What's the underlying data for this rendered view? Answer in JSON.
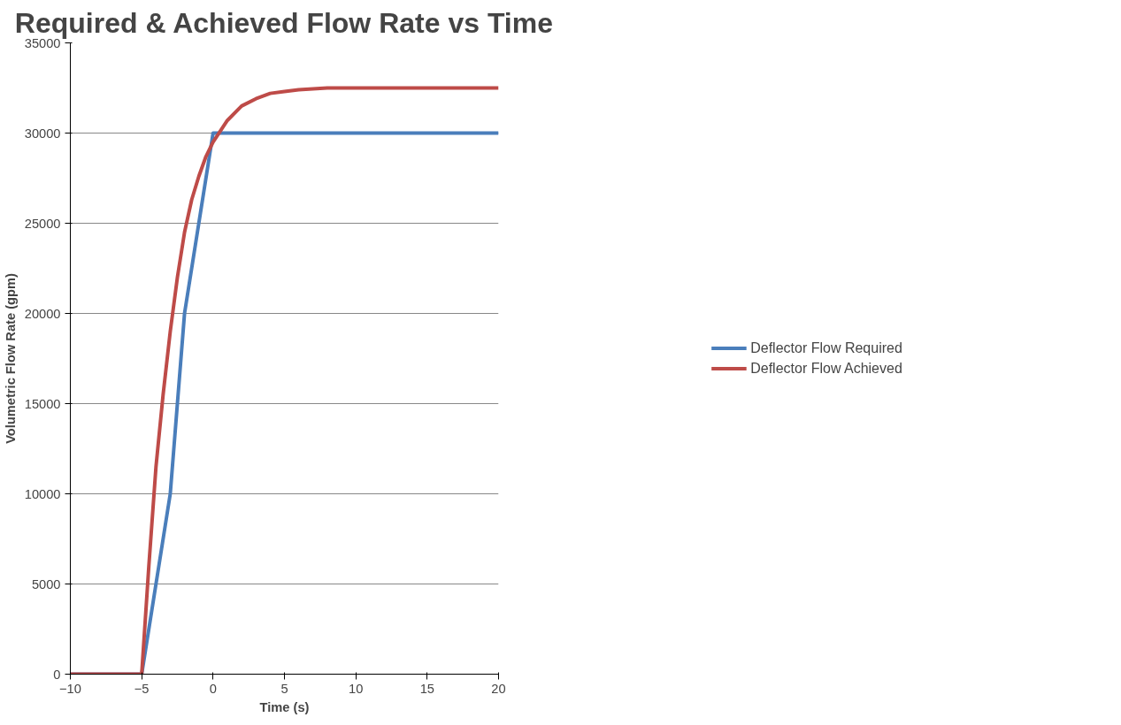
{
  "chart_data": {
    "type": "line",
    "title": "Required & Achieved Flow Rate vs Time",
    "xlabel": "Time (s)",
    "ylabel": "Volumetric Flow Rate (gpm)",
    "xlim": [
      -10,
      20
    ],
    "xticks": [
      -10,
      -5,
      0,
      5,
      10,
      15,
      20
    ],
    "ylim": [
      0,
      35000
    ],
    "yticks": [
      0,
      5000,
      10000,
      15000,
      20000,
      25000,
      30000,
      35000
    ],
    "grid": "y",
    "legend": "right",
    "marker": "none",
    "line_style": "solid",
    "series": [
      {
        "name": "Deflector Flow Required",
        "color": "#4a7ebb",
        "x": [
          -10,
          -5,
          -3,
          -2,
          0,
          20
        ],
        "values": [
          0,
          0,
          10000,
          20000,
          30000,
          30000
        ]
      },
      {
        "name": "Deflector Flow Achieved",
        "color": "#be4b48",
        "x": [
          -10,
          -5,
          -4.5,
          -4,
          -3.5,
          -3,
          -2.5,
          -2,
          -1.5,
          -1,
          -0.5,
          0,
          1,
          2,
          3,
          4,
          5,
          6,
          8,
          20
        ],
        "values": [
          0,
          0,
          6000,
          11500,
          15500,
          19000,
          22000,
          24500,
          26300,
          27600,
          28700,
          29500,
          30700,
          31500,
          31900,
          32200,
          32300,
          32400,
          32500,
          32500
        ]
      }
    ]
  }
}
